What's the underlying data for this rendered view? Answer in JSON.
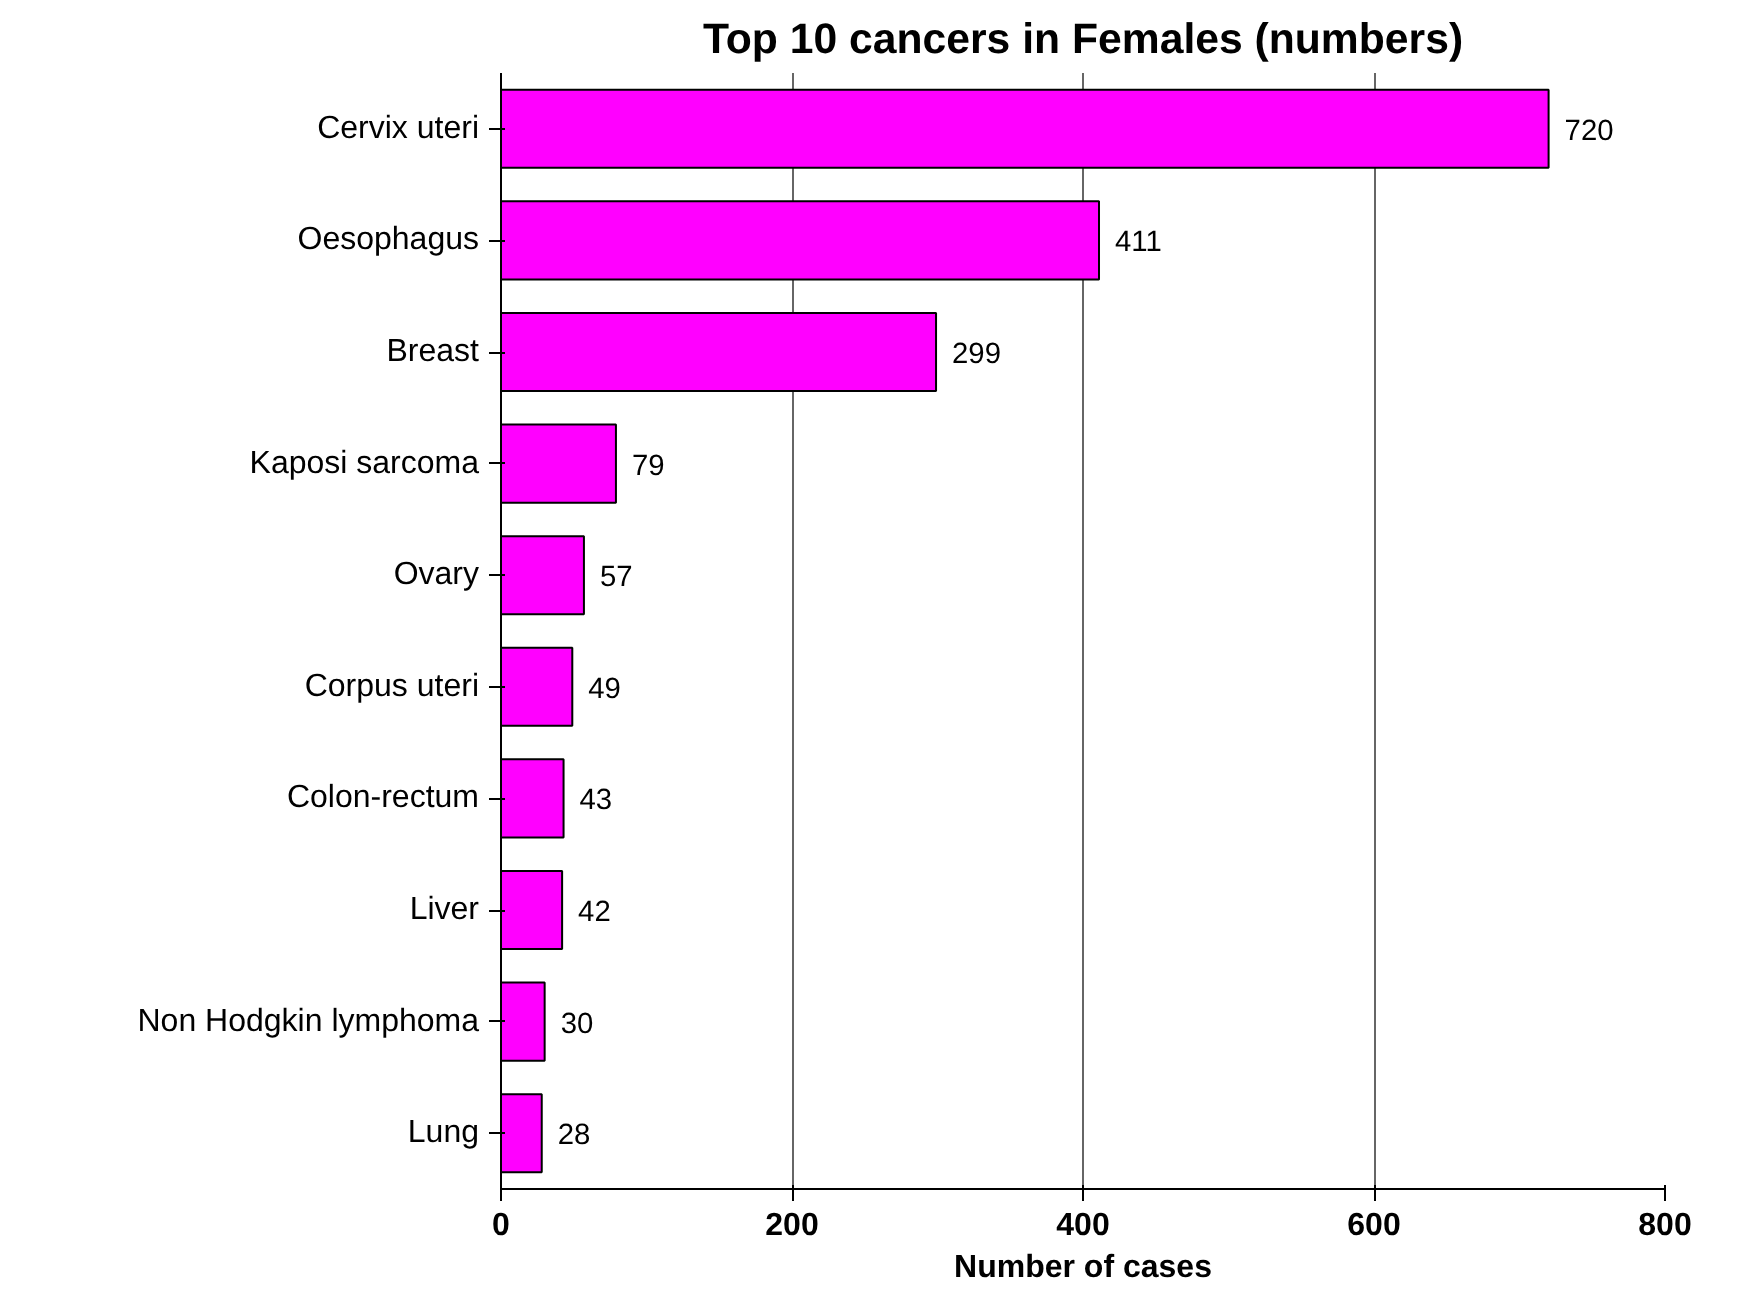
{
  "chart_data": {
    "type": "bar",
    "orientation": "horizontal",
    "title": "Top 10 cancers in Females (numbers)",
    "xlabel": "Number of cases",
    "categories": [
      "Cervix uteri",
      "Oesophagus",
      "Breast",
      "Kaposi sarcoma",
      "Ovary",
      "Corpus uteri",
      "Colon-rectum",
      "Liver",
      "Non Hodgkin lymphoma",
      "Lung"
    ],
    "values": [
      720,
      411,
      299,
      79,
      57,
      49,
      43,
      42,
      30,
      28
    ],
    "color": "#ff00ff",
    "xlim": [
      0,
      800
    ],
    "xticks": [
      0,
      200,
      400,
      600,
      800
    ],
    "grid": "x",
    "data_labels": true
  }
}
